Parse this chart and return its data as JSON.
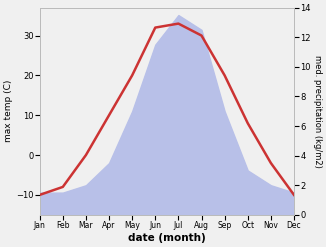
{
  "months": [
    1,
    2,
    3,
    4,
    5,
    6,
    7,
    8,
    9,
    10,
    11,
    12
  ],
  "month_labels": [
    "Jan",
    "Feb",
    "Mar",
    "Apr",
    "May",
    "Jun",
    "Jul",
    "Aug",
    "Sep",
    "Oct",
    "Nov",
    "Dec"
  ],
  "temp": [
    -10,
    -8,
    0,
    10,
    20,
    32,
    33,
    30,
    20,
    8,
    -2,
    -10
  ],
  "precip": [
    1.5,
    1.5,
    2.0,
    3.5,
    7.0,
    11.5,
    13.5,
    12.5,
    7.0,
    3.0,
    2.0,
    1.5
  ],
  "temp_color": "#cc3333",
  "precip_fill_color": "#b8c0e8",
  "temp_ylim": [
    -15,
    37
  ],
  "temp_yticks": [
    -10,
    0,
    10,
    20,
    30
  ],
  "precip_ylim": [
    0,
    14
  ],
  "precip_yticks": [
    0,
    2,
    4,
    6,
    8,
    10,
    12,
    14
  ],
  "xlabel": "date (month)",
  "ylabel_left": "max temp (C)",
  "ylabel_right": "med. precipitation (kg/m2)",
  "bg_color": "#f0f0f0",
  "linewidth": 1.8
}
